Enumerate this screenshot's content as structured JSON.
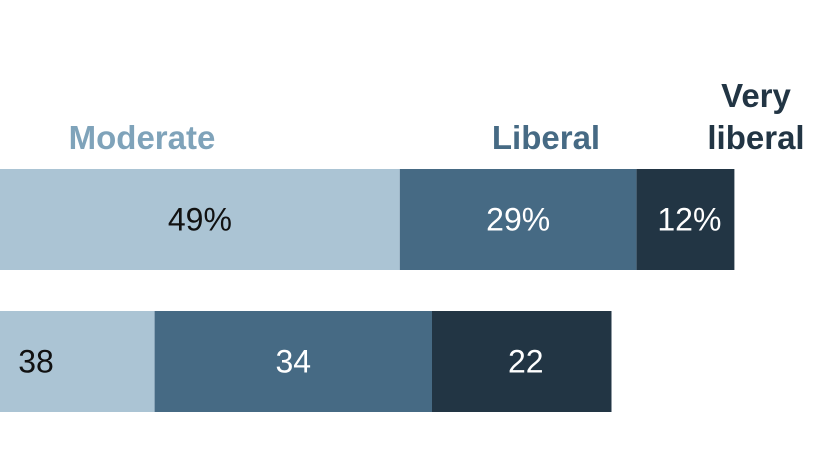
{
  "chart_data": {
    "type": "bar",
    "orientation": "horizontal",
    "stacked": true,
    "grid": false,
    "legend": "top",
    "series": [
      {
        "name": "Moderate",
        "values": [
          49,
          38
        ],
        "labels": [
          "49%",
          "38"
        ],
        "color": "#abc4d4",
        "label_color": "#111111",
        "legend_color": "#7fa3ba"
      },
      {
        "name": "Liberal",
        "values": [
          29,
          34
        ],
        "labels": [
          "29%",
          "34"
        ],
        "color": "#466a84",
        "label_color": "#ffffff",
        "legend_color": "#466a84"
      },
      {
        "name": "Very liberal",
        "values": [
          12,
          22
        ],
        "labels": [
          "12%",
          "22"
        ],
        "color": "#223544",
        "label_color": "#ffffff",
        "legend_color": "#223544"
      }
    ]
  }
}
